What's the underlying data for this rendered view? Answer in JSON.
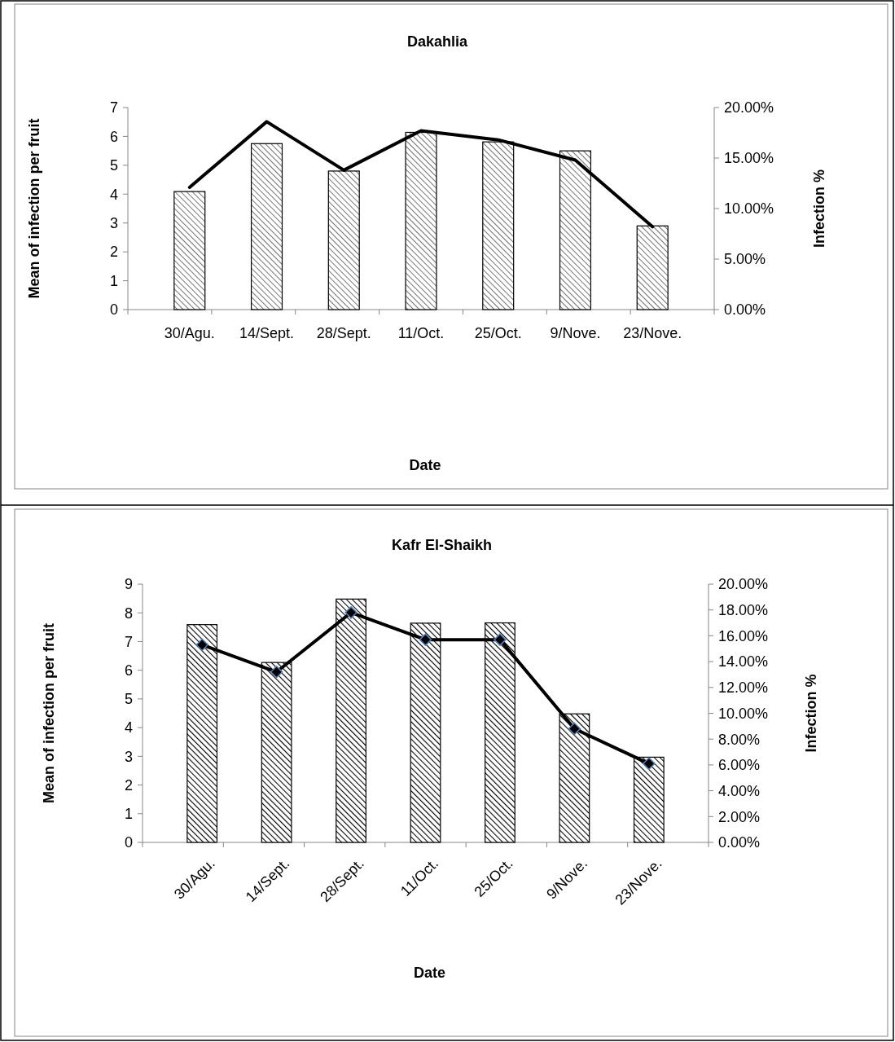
{
  "chart_data": [
    {
      "type": "bar",
      "title": "Dakahlia",
      "xlabel": "Date",
      "ylabel": "Mean of infection per fruit",
      "y2label": "Infection %",
      "categories": [
        "30/Agu.",
        "14/Sept.",
        "28/Sept.",
        "11/Oct.",
        "25/Oct.",
        "9/Nove.",
        "23/Nove."
      ],
      "series": [
        {
          "color": "#000000",
          "values": [
            4.09,
            5.75,
            4.8,
            6.14,
            5.81,
            5.5,
            2.9
          ]
        },
        {
          "type": "line",
          "axis": "y2",
          "color": "#000000",
          "values": [
            12.1,
            18.6,
            13.8,
            17.7,
            16.8,
            14.8,
            8.2
          ]
        }
      ],
      "ylim": [
        0,
        7
      ],
      "yticks": [
        0,
        1,
        2,
        3,
        4,
        5,
        6,
        7
      ],
      "y2lim": [
        0,
        20
      ],
      "y2ticks": [
        {
          "value": 0,
          "label": "0.00%"
        },
        {
          "value": 5,
          "label": "5.00%"
        },
        {
          "value": 10,
          "label": "10.00%"
        },
        {
          "value": 15,
          "label": "15.00%"
        },
        {
          "value": 20,
          "label": "20.00%"
        }
      ]
    },
    {
      "type": "bar",
      "title": "Kafr El-Shaikh",
      "xlabel": "Date",
      "ylabel": "Mean of infection per fruit",
      "y2label": "Infection %",
      "categories": [
        "30/Agu.",
        "14/Sept.",
        "28/Sept.",
        "11/Oct.",
        "25/Oct.",
        "9/Nove.",
        "23/Nove."
      ],
      "series": [
        {
          "color": "#000000",
          "values": [
            7.59,
            6.27,
            8.48,
            7.64,
            7.65,
            4.48,
            2.97
          ]
        },
        {
          "type": "line",
          "axis": "y2",
          "color": "#000000",
          "values": [
            15.3,
            13.2,
            17.8,
            15.7,
            15.7,
            8.8,
            6.1
          ]
        }
      ],
      "marker": "diamond",
      "ylim": [
        0,
        9
      ],
      "yticks": [
        0,
        1,
        2,
        3,
        4,
        5,
        6,
        7,
        8,
        9
      ],
      "y2lim": [
        0,
        20
      ],
      "y2ticks": [
        {
          "value": 0,
          "label": "0.00%"
        },
        {
          "value": 2,
          "label": "2.00%"
        },
        {
          "value": 4,
          "label": "4.00%"
        },
        {
          "value": 6,
          "label": "6.00%"
        },
        {
          "value": 8,
          "label": "8.00%"
        },
        {
          "value": 10,
          "label": "10.00%"
        },
        {
          "value": 12,
          "label": "12.00%"
        },
        {
          "value": 14,
          "label": "14.00%"
        },
        {
          "value": 16,
          "label": "16.00%"
        },
        {
          "value": 18,
          "label": "18.00%"
        },
        {
          "value": 20,
          "label": "20.00%"
        }
      ]
    }
  ]
}
